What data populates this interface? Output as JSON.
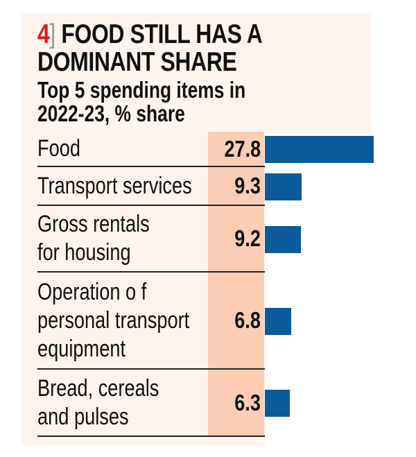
{
  "chart_data": {
    "type": "bar",
    "orientation": "horizontal",
    "number": "4",
    "title": "FOOD STILL HAS A DOMINANT SHARE",
    "subtitle": "Top 5 spending items in 2022-23, % share",
    "categories": [
      "Food",
      "Transport services",
      "Gross rentals\nfor housing",
      "Operation o f\npersonal transport\nequipment",
      "Bread, cereals\nand pulses"
    ],
    "values": [
      27.8,
      9.3,
      9.2,
      6.8,
      6.3
    ],
    "value_labels": [
      "27.8",
      "9.3",
      "9.2",
      "6.8",
      "6.3"
    ],
    "unit": "%",
    "bar_color": "#0a5a9c",
    "value_column_color": "#fbcdb4",
    "accent_color": "#e41b1b",
    "grid": false
  }
}
